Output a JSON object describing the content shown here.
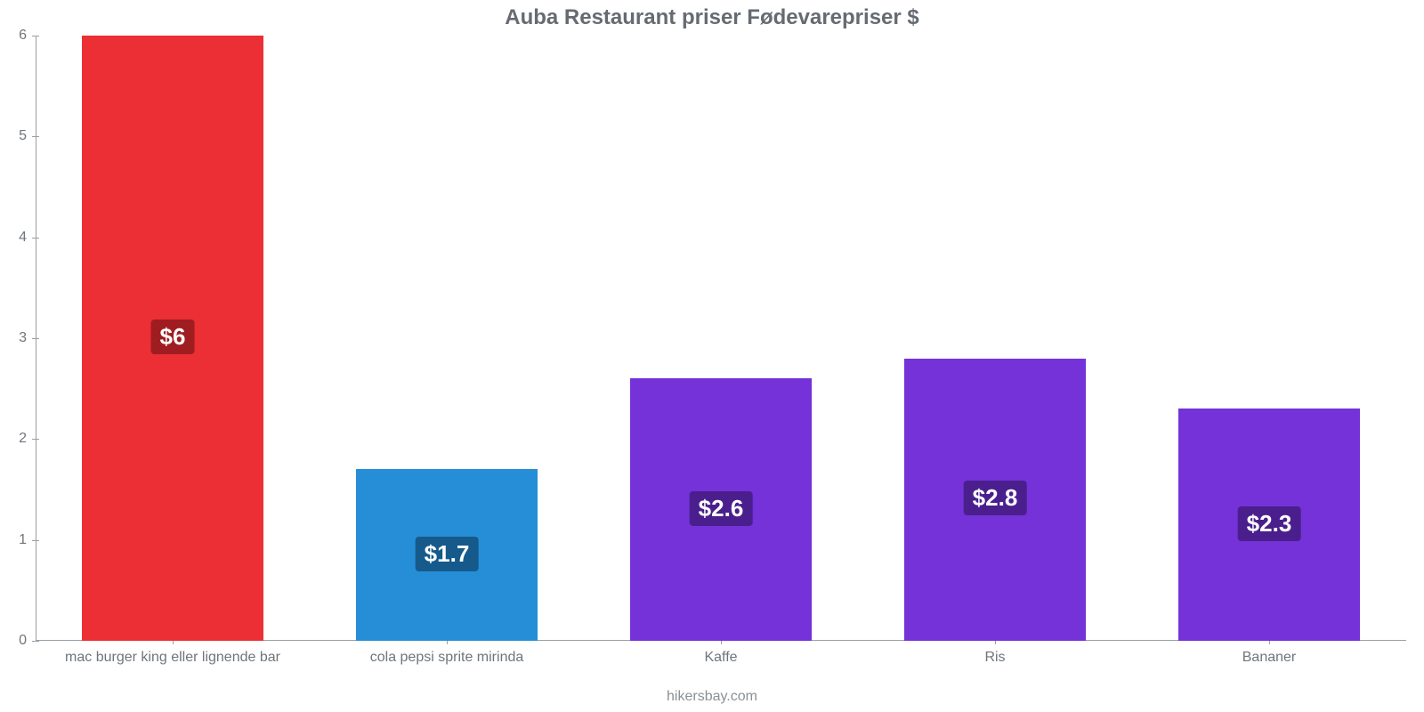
{
  "chart": {
    "type": "bar",
    "title": "Auba Restaurant priser Fødevarepriser $",
    "title_color": "#666b72",
    "title_fontsize": 24,
    "background_color": "#ffffff",
    "axis_color": "#99a0a6",
    "tick_label_color": "#6f757c",
    "tick_fontsize": 16,
    "ylim": [
      0,
      6
    ],
    "ytick_step": 1,
    "yticks": [
      0,
      1,
      2,
      3,
      4,
      5,
      6
    ],
    "bar_width_ratio": 0.66,
    "categories": [
      "mac burger king eller lignende bar",
      "cola pepsi sprite mirinda",
      "Kaffe",
      "Ris",
      "Bananer"
    ],
    "values": [
      6,
      1.7,
      2.6,
      2.8,
      2.3
    ],
    "value_labels": [
      "$6",
      "$1.7",
      "$2.6",
      "$2.8",
      "$2.3"
    ],
    "bar_colors": [
      "#eb2f34",
      "#268ed7",
      "#7432d8",
      "#7432d8",
      "#7432d8"
    ],
    "badge_colors": [
      "#9f1d20",
      "#155a8b",
      "#4a1f8d",
      "#4a1f8d",
      "#4a1f8d"
    ],
    "value_label_fontsize": 26,
    "footer": "hikersbay.com",
    "footer_color": "#8a9097"
  }
}
